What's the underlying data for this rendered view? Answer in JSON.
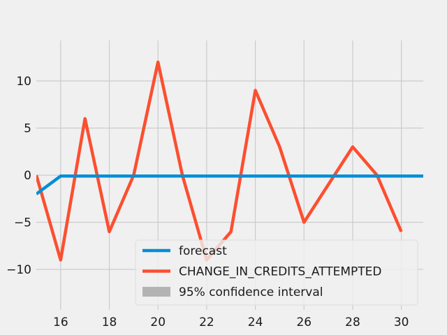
{
  "chart_data": {
    "type": "line",
    "title": "",
    "xlabel": "",
    "ylabel": "",
    "xlim": [
      15,
      30.9
    ],
    "ylim": [
      -14.3,
      14.3
    ],
    "x_ticks": [
      16,
      18,
      20,
      22,
      24,
      26,
      28,
      30
    ],
    "y_ticks": [
      -10,
      -5,
      0,
      5,
      10
    ],
    "x_tick_labels": [
      "16",
      "18",
      "20",
      "22",
      "24",
      "26",
      "28",
      "30"
    ],
    "y_tick_labels": [
      "−10",
      "−5",
      "0",
      "5",
      "10"
    ],
    "grid": true,
    "legend_position": "lower-right",
    "series": [
      {
        "name": "forecast",
        "color": "#008fd5",
        "x": [
          15,
          16,
          17,
          18,
          19,
          20,
          21,
          22,
          23,
          24,
          25,
          26,
          27,
          28,
          29,
          30,
          30.9
        ],
        "y": [
          -2,
          -0.1,
          -0.1,
          -0.1,
          -0.1,
          -0.1,
          -0.1,
          -0.1,
          -0.1,
          -0.1,
          -0.1,
          -0.1,
          -0.1,
          -0.1,
          -0.1,
          -0.1,
          -0.1
        ]
      },
      {
        "name": "CHANGE_IN_CREDITS_ATTEMPTED",
        "color": "#fc4f30",
        "x": [
          15,
          16,
          17,
          18,
          19,
          20,
          21,
          22,
          23,
          24,
          25,
          26,
          27,
          28,
          29,
          30
        ],
        "y": [
          0,
          -9,
          6,
          -6,
          0,
          12,
          0,
          -9,
          -6,
          9,
          3,
          -5,
          -1,
          3,
          0,
          -6
        ]
      }
    ],
    "legend": [
      {
        "label": "forecast",
        "color": "#008fd5",
        "kind": "line"
      },
      {
        "label": "CHANGE_IN_CREDITS_ATTEMPTED",
        "color": "#fc4f30",
        "kind": "line"
      },
      {
        "label": "95% confidence interval",
        "color": "#b3b3b3",
        "kind": "patch"
      }
    ]
  }
}
